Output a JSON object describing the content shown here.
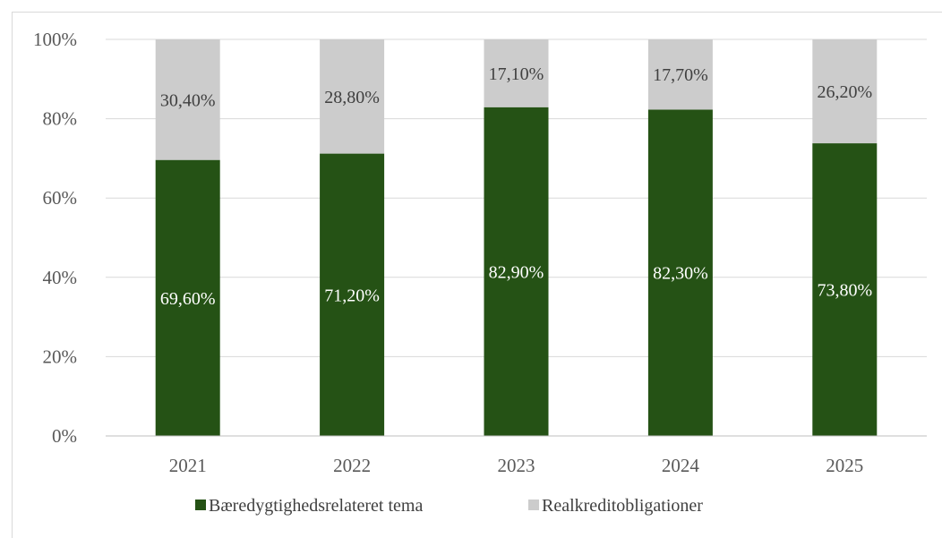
{
  "chart_data": {
    "type": "bar",
    "stacked": true,
    "categories": [
      "2021",
      "2022",
      "2023",
      "2024",
      "2025"
    ],
    "series": [
      {
        "name": "Bæredygtighedsrelateret tema",
        "values": [
          69.6,
          71.2,
          82.9,
          82.3,
          73.8
        ],
        "labels": [
          "69,60%",
          "71,20%",
          "82,90%",
          "82,30%",
          "73,80%"
        ],
        "color": "#255215",
        "label_color": "#ffffff"
      },
      {
        "name": "Realkreditobligationer",
        "values": [
          30.4,
          28.8,
          17.1,
          17.7,
          26.2
        ],
        "labels": [
          "30,40%",
          "28,80%",
          "17,10%",
          "17,70%",
          "26,20%"
        ],
        "color": "#cccccc",
        "label_color": "#404040"
      }
    ],
    "ylim": [
      0,
      100
    ],
    "yticks": [
      "0%",
      "20%",
      "40%",
      "60%",
      "80%",
      "100%"
    ],
    "grid": true,
    "legend": "bottom",
    "title": "",
    "xlabel": "",
    "ylabel": ""
  }
}
